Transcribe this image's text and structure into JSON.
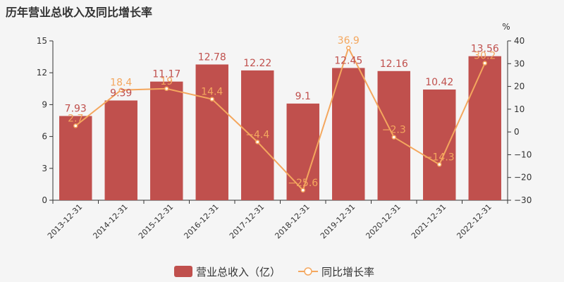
{
  "title": "历年营业总收入及同比增长率",
  "chart_data": {
    "type": "bar",
    "categories": [
      "2013-12-31",
      "2014-12-31",
      "2015-12-31",
      "2016-12-31",
      "2017-12-31",
      "2018-12-31",
      "2019-12-31",
      "2020-12-31",
      "2021-12-31",
      "2022-12-31"
    ],
    "series": [
      {
        "name": "营业总收入（亿）",
        "type": "bar",
        "axis": "left",
        "color": "#c0504d",
        "values": [
          7.93,
          9.39,
          11.17,
          12.78,
          12.22,
          9.1,
          12.45,
          12.16,
          10.42,
          13.56
        ],
        "labels": [
          "7.93",
          "9.39",
          "11.17",
          "12.78",
          "12.22",
          "9.1",
          "12.45",
          "12.16",
          "10.42",
          "13.56"
        ]
      },
      {
        "name": "同比增长率",
        "type": "line",
        "axis": "right",
        "color": "#f4a75e",
        "values": [
          2.7,
          18.4,
          19,
          14.4,
          -4.4,
          -25.6,
          36.9,
          -2.3,
          -14.3,
          30.2
        ],
        "labels": [
          "2.7",
          "18.4",
          "19",
          "14.4",
          "−4.4",
          "−25.6",
          "36.9",
          "−2.3",
          "−14.3",
          "30.2"
        ]
      }
    ],
    "y_left": {
      "min": 0,
      "max": 15,
      "ticks": [
        "0",
        "3",
        "6",
        "9",
        "12",
        "15"
      ]
    },
    "y_right": {
      "min": -30,
      "max": 40,
      "ticks": [
        "−30",
        "−20",
        "−10",
        "0",
        "10",
        "20",
        "30",
        "40"
      ],
      "unit": "%"
    },
    "grid": false,
    "legend_position": "bottom-center"
  }
}
